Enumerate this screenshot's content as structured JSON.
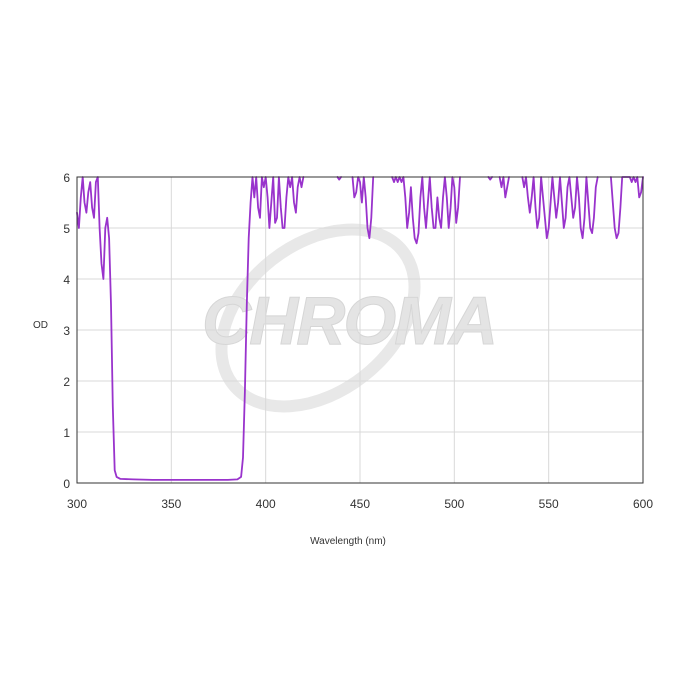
{
  "chart_data": {
    "type": "line",
    "title": "",
    "xlabel": "Wavelength (nm)",
    "ylabel": "OD",
    "xlim": [
      300,
      600
    ],
    "ylim": [
      0,
      6
    ],
    "x_ticks": [
      "300",
      "350",
      "400",
      "450",
      "500",
      "550",
      "600"
    ],
    "y_ticks": [
      "0",
      "1",
      "2",
      "3",
      "4",
      "5",
      "6"
    ],
    "grid": true,
    "legend": "none",
    "watermark": "CHROMA",
    "series": [
      {
        "color": "#9933cc",
        "segments": [
          [
            [
              300,
              5.3
            ],
            [
              301,
              5.0
            ],
            [
              302,
              5.6
            ],
            [
              303,
              6.0
            ],
            [
              304,
              5.5
            ],
            [
              305,
              5.3
            ],
            [
              306,
              5.7
            ],
            [
              307,
              5.9
            ],
            [
              308,
              5.4
            ],
            [
              309,
              5.2
            ],
            [
              310,
              5.9
            ],
            [
              311,
              6.0
            ],
            [
              312,
              5.0
            ],
            [
              313,
              4.3
            ],
            [
              314,
              4.0
            ],
            [
              315,
              5.0
            ],
            [
              316,
              5.2
            ],
            [
              317,
              4.8
            ],
            [
              318,
              3.5
            ],
            [
              319,
              1.5
            ],
            [
              320,
              0.25
            ],
            [
              321,
              0.12
            ],
            [
              323,
              0.08
            ],
            [
              330,
              0.07
            ],
            [
              340,
              0.06
            ],
            [
              350,
              0.06
            ],
            [
              360,
              0.06
            ],
            [
              370,
              0.06
            ],
            [
              380,
              0.06
            ],
            [
              385,
              0.07
            ],
            [
              387,
              0.12
            ],
            [
              388,
              0.5
            ],
            [
              389,
              1.8
            ],
            [
              390,
              3.5
            ],
            [
              391,
              4.8
            ],
            [
              392,
              5.5
            ],
            [
              393,
              6.0
            ],
            [
              394,
              5.6
            ],
            [
              395,
              6.0
            ],
            [
              396,
              5.4
            ],
            [
              397,
              5.2
            ],
            [
              398,
              6.0
            ],
            [
              399,
              5.8
            ],
            [
              400,
              6.0
            ],
            [
              401,
              5.6
            ],
            [
              402,
              5.0
            ],
            [
              403,
              5.5
            ],
            [
              404,
              6.0
            ],
            [
              405,
              5.1
            ],
            [
              406,
              5.2
            ],
            [
              407,
              6.0
            ],
            [
              408,
              5.4
            ],
            [
              409,
              5.0
            ],
            [
              410,
              5.0
            ],
            [
              411,
              5.6
            ],
            [
              412,
              6.0
            ],
            [
              413,
              5.8
            ],
            [
              414,
              6.0
            ],
            [
              415,
              5.5
            ],
            [
              416,
              5.3
            ],
            [
              417,
              5.8
            ],
            [
              418,
              6.0
            ],
            [
              419,
              5.8
            ],
            [
              420,
              6.0
            ]
          ],
          [
            [
              438,
              6.0
            ],
            [
              439,
              5.95
            ],
            [
              440,
              6.0
            ]
          ],
          [
            [
              446,
              6.0
            ],
            [
              447,
              5.6
            ],
            [
              448,
              5.7
            ],
            [
              449,
              6.0
            ],
            [
              450,
              5.9
            ],
            [
              451,
              5.5
            ],
            [
              452,
              6.0
            ],
            [
              453,
              5.6
            ],
            [
              454,
              5.0
            ],
            [
              455,
              4.8
            ],
            [
              456,
              5.2
            ],
            [
              457,
              6.0
            ]
          ],
          [
            [
              467,
              6.0
            ],
            [
              468,
              5.9
            ],
            [
              469,
              6.0
            ],
            [
              470,
              5.9
            ],
            [
              471,
              6.0
            ],
            [
              472,
              5.9
            ],
            [
              473,
              6.0
            ],
            [
              474,
              5.6
            ],
            [
              475,
              5.0
            ],
            [
              476,
              5.3
            ],
            [
              477,
              5.8
            ],
            [
              478,
              5.2
            ],
            [
              479,
              4.8
            ],
            [
              480,
              4.7
            ],
            [
              481,
              4.9
            ],
            [
              482,
              5.6
            ],
            [
              483,
              6.0
            ],
            [
              484,
              5.4
            ],
            [
              485,
              5.0
            ],
            [
              486,
              5.5
            ],
            [
              487,
              6.0
            ],
            [
              488,
              5.4
            ],
            [
              489,
              5.0
            ],
            [
              490,
              5.0
            ],
            [
              491,
              5.6
            ],
            [
              492,
              5.2
            ],
            [
              493,
              5.0
            ],
            [
              494,
              5.6
            ],
            [
              495,
              6.0
            ],
            [
              496,
              5.6
            ],
            [
              497,
              5.0
            ],
            [
              498,
              5.4
            ],
            [
              499,
              6.0
            ],
            [
              500,
              5.8
            ],
            [
              501,
              5.1
            ],
            [
              502,
              5.4
            ],
            [
              503,
              6.0
            ]
          ],
          [
            [
              518,
              6.0
            ],
            [
              519,
              5.95
            ],
            [
              520,
              6.0
            ]
          ],
          [
            [
              524,
              6.0
            ],
            [
              525,
              5.8
            ],
            [
              526,
              6.0
            ],
            [
              527,
              5.6
            ],
            [
              528,
              5.8
            ],
            [
              529,
              6.0
            ]
          ],
          [
            [
              536,
              6.0
            ],
            [
              537,
              5.8
            ],
            [
              538,
              6.0
            ],
            [
              539,
              5.6
            ],
            [
              540,
              5.3
            ],
            [
              541,
              5.6
            ],
            [
              542,
              6.0
            ],
            [
              543,
              5.4
            ],
            [
              544,
              5.0
            ],
            [
              545,
              5.2
            ],
            [
              546,
              6.0
            ],
            [
              547,
              5.6
            ],
            [
              548,
              5.2
            ],
            [
              549,
              4.8
            ],
            [
              550,
              5.0
            ],
            [
              551,
              5.5
            ],
            [
              552,
              6.0
            ],
            [
              553,
              5.6
            ],
            [
              554,
              5.2
            ],
            [
              555,
              5.5
            ],
            [
              556,
              6.0
            ],
            [
              557,
              5.5
            ],
            [
              558,
              5.0
            ],
            [
              559,
              5.2
            ],
            [
              560,
              5.8
            ],
            [
              561,
              6.0
            ],
            [
              562,
              5.6
            ],
            [
              563,
              5.2
            ],
            [
              564,
              5.4
            ],
            [
              565,
              6.0
            ],
            [
              566,
              5.6
            ],
            [
              567,
              5.0
            ],
            [
              568,
              4.8
            ],
            [
              569,
              5.2
            ],
            [
              570,
              6.0
            ],
            [
              571,
              5.5
            ],
            [
              572,
              5.0
            ],
            [
              573,
              4.9
            ],
            [
              574,
              5.2
            ],
            [
              575,
              5.8
            ],
            [
              576,
              6.0
            ]
          ],
          [
            [
              583,
              6.0
            ],
            [
              584,
              5.5
            ],
            [
              585,
              5.0
            ],
            [
              586,
              4.8
            ],
            [
              587,
              4.9
            ],
            [
              588,
              5.4
            ],
            [
              589,
              6.0
            ],
            [
              590,
              6.0
            ],
            [
              591,
              6.0
            ],
            [
              592,
              6.0
            ],
            [
              593,
              6.0
            ],
            [
              594,
              5.9
            ],
            [
              595,
              6.0
            ],
            [
              596,
              5.9
            ],
            [
              597,
              6.0
            ],
            [
              598,
              5.6
            ],
            [
              599,
              5.7
            ],
            [
              600,
              6.0
            ]
          ]
        ]
      }
    ]
  },
  "colors": {
    "line": "#9933cc",
    "grid": "#d9d9d9",
    "frame": "#333333",
    "watermark": "#e4e4e4"
  }
}
